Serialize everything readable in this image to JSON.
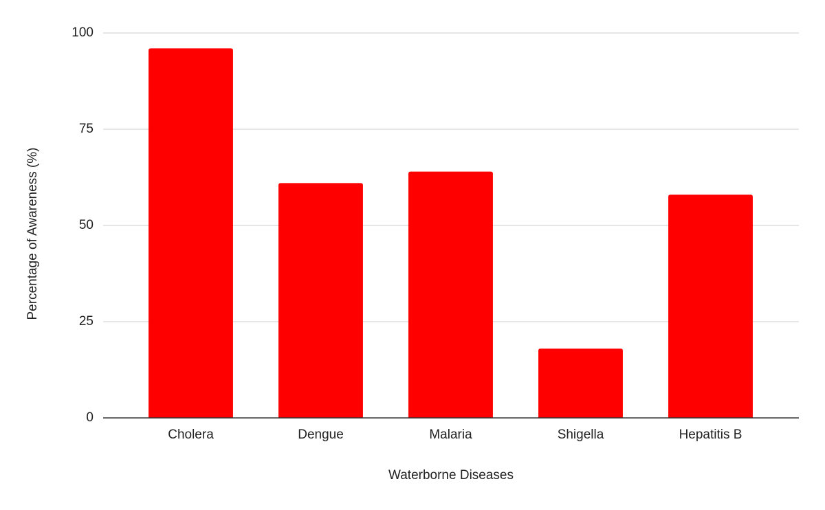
{
  "chart_data": {
    "type": "bar",
    "x_label": "Waterborne Diseases",
    "y_label": "Percentage of Awareness (%)",
    "categories": [
      "Cholera",
      "Dengue",
      "Malaria",
      "Shigella",
      "Hepatitis B"
    ],
    "values": [
      96,
      61,
      64,
      18,
      58
    ],
    "color": "#ff0000",
    "ylim": [
      0,
      100
    ],
    "yticks": [
      0,
      25,
      50,
      75,
      100
    ],
    "grid": true
  }
}
